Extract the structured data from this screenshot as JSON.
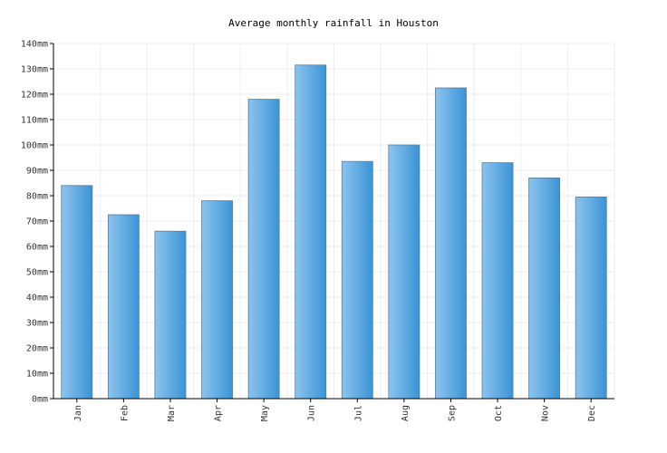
{
  "chart_data": {
    "type": "bar",
    "title": "Average monthly rainfall in Houston",
    "xlabel": "",
    "ylabel": "",
    "unit": "mm",
    "categories": [
      "Jan",
      "Feb",
      "Mar",
      "Apr",
      "May",
      "Jun",
      "Jul",
      "Aug",
      "Sep",
      "Oct",
      "Nov",
      "Dec"
    ],
    "values": [
      84,
      72.5,
      66,
      78,
      118,
      131.5,
      93.5,
      100,
      122.5,
      93,
      87,
      79.5
    ],
    "ylim": [
      0,
      140
    ],
    "yticks": [
      "0mm",
      "10mm",
      "20mm",
      "30mm",
      "40mm",
      "50mm",
      "60mm",
      "70mm",
      "80mm",
      "90mm",
      "100mm",
      "110mm",
      "120mm",
      "130mm",
      "140mm"
    ],
    "grid": true,
    "legend": "none",
    "colors": {
      "bar_light": "#8cc4ee",
      "bar_dark": "#3a94d6",
      "bar_border": "#5a7b99",
      "grid": "#eeeeee"
    }
  }
}
